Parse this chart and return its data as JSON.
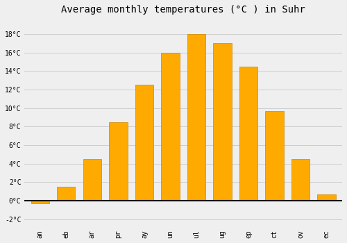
{
  "months": [
    "an",
    "eb",
    "ar",
    "pr",
    "ay",
    "un",
    "ul",
    "ug",
    "ep",
    "ct",
    "ov",
    "ec"
  ],
  "temperatures": [
    -0.3,
    1.5,
    4.5,
    8.5,
    12.5,
    16.0,
    18.0,
    17.0,
    14.5,
    9.7,
    4.5,
    0.7
  ],
  "bar_color": "#FFAA00",
  "bar_edge_color": "#CC8800",
  "title": "Average monthly temperatures (°C ) in Suhr",
  "title_fontsize": 10,
  "ylim": [
    -2.8,
    19.5
  ],
  "yticks": [
    -2,
    0,
    2,
    4,
    6,
    8,
    10,
    12,
    14,
    16,
    18
  ],
  "background_color": "#EFEFEF",
  "grid_color": "#CCCCCC",
  "xlabel_fontsize": 7,
  "ylabel_fontsize": 7,
  "bar_width": 0.7
}
